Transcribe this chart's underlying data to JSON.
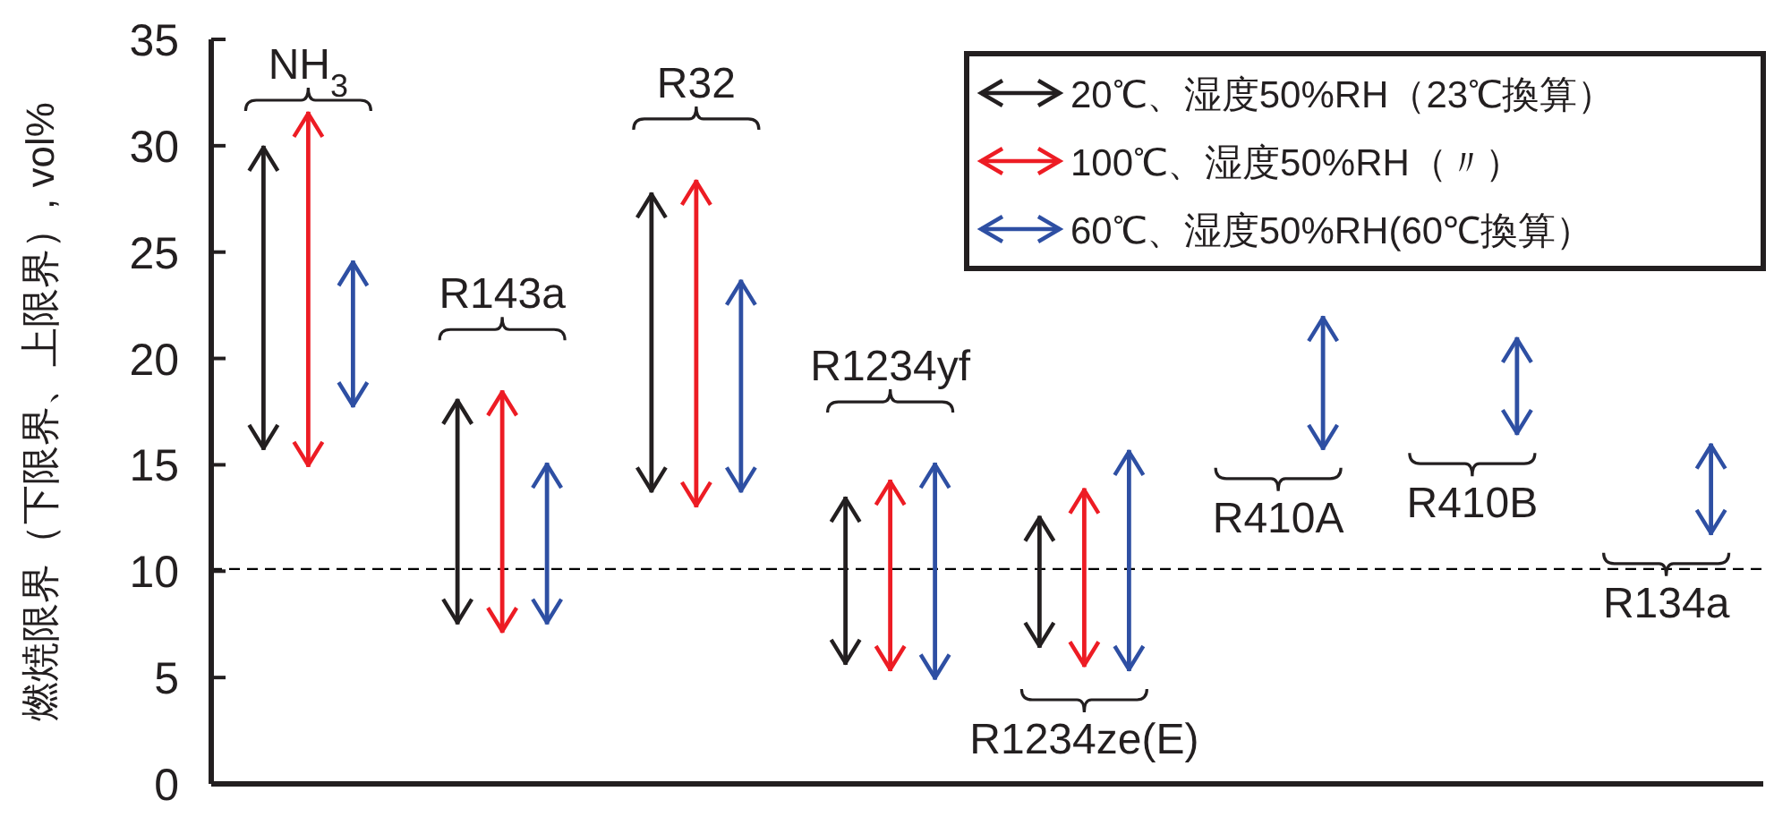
{
  "chart_data": {
    "type": "bar",
    "ylabel": "燃焼限界（下限界、上限界）, vol%",
    "categories": [
      "NH$_{3}$",
      "R143a",
      "R32",
      "R1234yf",
      "R1234ze(E)",
      "R410A",
      "R410B",
      "R134a"
    ],
    "series": [
      {
        "name": "20℃、湿度50%RH（23℃換算）",
        "color": "#231f20",
        "base": [
          15.7,
          7.5,
          13.7,
          5.6,
          6.4,
          null,
          null,
          null
        ],
        "values": [
          14.3,
          10.6,
          14.1,
          7.9,
          6.2,
          null,
          null,
          null
        ]
      },
      {
        "name": "100℃、湿度50%RH（〃）",
        "color": "#ed1c24",
        "base": [
          14.9,
          7.1,
          13.0,
          5.3,
          5.5,
          null,
          null,
          null
        ],
        "values": [
          16.7,
          11.4,
          15.4,
          9.0,
          8.4,
          null,
          null,
          null
        ]
      },
      {
        "name": "60℃、湿度50%RH(60℃換算）",
        "color": "#2e4fa3",
        "base": [
          17.7,
          7.5,
          13.7,
          4.9,
          5.3,
          15.7,
          16.4,
          11.7
        ],
        "values": [
          6.9,
          7.6,
          10.0,
          10.2,
          10.4,
          6.3,
          4.6,
          4.3
        ]
      }
    ],
    "ylim": [
      0,
      35
    ],
    "yticks": [
      0,
      5,
      10,
      15,
      20,
      25,
      30,
      35
    ],
    "tick_labels": "y",
    "grid": false,
    "legend": "top right",
    "ref_lines": [
      {
        "axis": "y",
        "value": 10.1,
        "color": "#000000",
        "line_style": "dashed"
      }
    ]
  }
}
